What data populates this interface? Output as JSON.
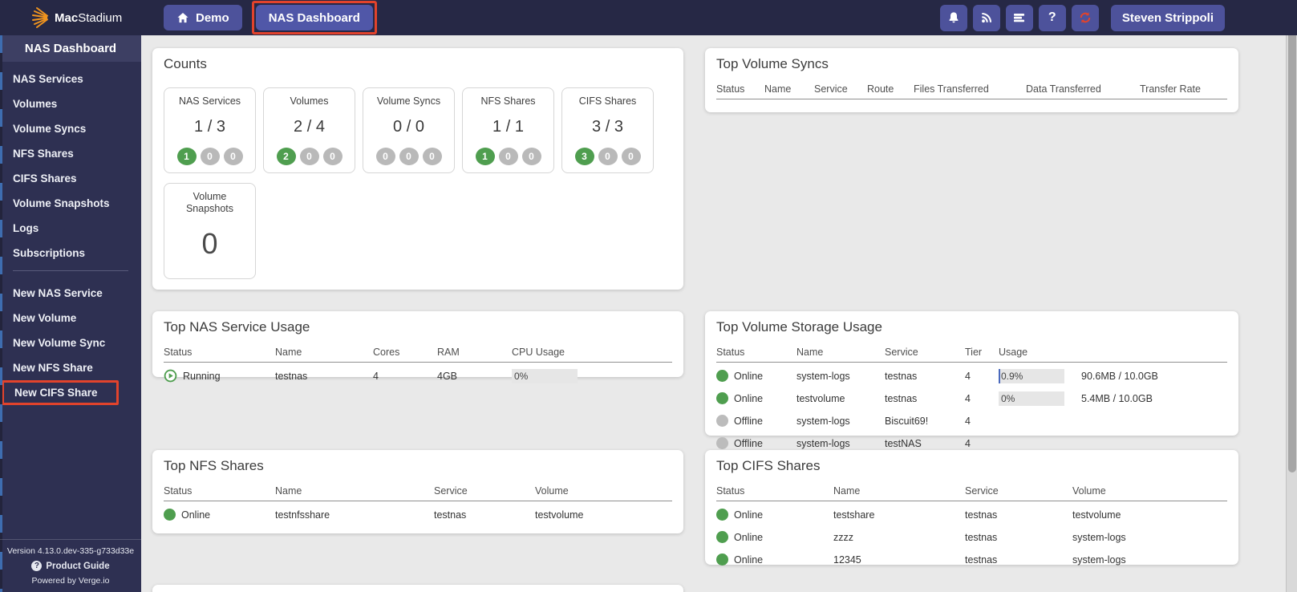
{
  "colors": {
    "accent_red": "#e2432c",
    "green": "#4f9e4f",
    "badge_gray": "#b9b9b9",
    "navbar_bg": "#262845",
    "sidebar_bg": "#2e3052",
    "button_bg": "#4d529b",
    "refresh_orange": "#e2432c",
    "bar_fill_blue": "#4a69bd",
    "logo_orange": "#f0941f"
  },
  "navbar": {
    "logo_bold": "Mac",
    "logo_light": "Stadium",
    "tabs": [
      {
        "label": "Demo",
        "icon": "home-icon"
      },
      {
        "label": "NAS Dashboard",
        "highlighted": true
      }
    ],
    "icon_buttons": [
      "bell-icon",
      "rss-icon",
      "server-list-icon",
      "help-icon",
      "refresh-icon"
    ],
    "help_glyph": "?",
    "user": "Steven Strippoli"
  },
  "sidebar": {
    "title": "NAS Dashboard",
    "items": [
      "NAS Services",
      "Volumes",
      "Volume Syncs",
      "NFS Shares",
      "CIFS Shares",
      "Volume Snapshots",
      "Logs",
      "Subscriptions"
    ],
    "actions": [
      {
        "label": "New NAS Service"
      },
      {
        "label": "New Volume"
      },
      {
        "label": "New Volume Sync"
      },
      {
        "label": "New NFS Share"
      },
      {
        "label": "New CIFS Share",
        "highlighted": true
      }
    ],
    "footer": {
      "version": "Version 4.13.0.dev-335-g733d33e",
      "guide": "Product Guide",
      "powered": "Powered by Verge.io"
    }
  },
  "counts": {
    "title": "Counts",
    "cards": [
      {
        "label": "NAS Services",
        "value": "1 / 3",
        "badges": [
          {
            "n": "1",
            "on": true
          },
          {
            "n": "0",
            "on": false
          },
          {
            "n": "0",
            "on": false
          }
        ]
      },
      {
        "label": "Volumes",
        "value": "2 / 4",
        "badges": [
          {
            "n": "2",
            "on": true
          },
          {
            "n": "0",
            "on": false
          },
          {
            "n": "0",
            "on": false
          }
        ]
      },
      {
        "label": "Volume Syncs",
        "value": "0 / 0",
        "badges": [
          {
            "n": "0",
            "on": false
          },
          {
            "n": "0",
            "on": false
          },
          {
            "n": "0",
            "on": false
          }
        ]
      },
      {
        "label": "NFS Shares",
        "value": "1 / 1",
        "badges": [
          {
            "n": "1",
            "on": true
          },
          {
            "n": "0",
            "on": false
          },
          {
            "n": "0",
            "on": false
          }
        ]
      },
      {
        "label": "CIFS Shares",
        "value": "3 / 3",
        "badges": [
          {
            "n": "3",
            "on": true
          },
          {
            "n": "0",
            "on": false
          },
          {
            "n": "0",
            "on": false
          }
        ]
      }
    ],
    "snapshot_card": {
      "label": "Volume Snapshots",
      "value": "0"
    }
  },
  "panels": {
    "volume_syncs": {
      "title": "Top Volume Syncs",
      "columns": [
        "Status",
        "Name",
        "Service",
        "Route",
        "Files Transferred",
        "Data Transferred",
        "Transfer Rate"
      ],
      "rows": []
    },
    "nas_service_usage": {
      "title": "Top NAS Service Usage",
      "columns": [
        "Status",
        "Name",
        "Cores",
        "RAM",
        "CPU Usage"
      ],
      "rows": [
        [
          {
            "status": "Running"
          },
          "testnas",
          "4",
          "4GB",
          {
            "bar": 0,
            "label": "0%"
          }
        ]
      ]
    },
    "volume_storage": {
      "title": "Top Volume Storage Usage",
      "columns": [
        "Status",
        "Name",
        "Service",
        "Tier",
        "Usage"
      ],
      "rows": [
        [
          {
            "dot": "green",
            "label": "Online"
          },
          "system-logs",
          "testnas",
          "4",
          {
            "bar": 0.9,
            "label": "0.9%",
            "after": "90.6MB / 10.0GB"
          }
        ],
        [
          {
            "dot": "green",
            "label": "Online"
          },
          "testvolume",
          "testnas",
          "4",
          {
            "bar": 0,
            "label": "0%",
            "after": "5.4MB / 10.0GB"
          }
        ],
        [
          {
            "dot": "gray",
            "label": "Offline"
          },
          "system-logs",
          "Biscuit69!",
          "4",
          ""
        ],
        [
          {
            "dot": "gray",
            "label": "Offline"
          },
          "system-logs",
          "testNAS",
          "4",
          ""
        ]
      ]
    },
    "nfs_shares": {
      "title": "Top NFS Shares",
      "columns": [
        "Status",
        "Name",
        "Service",
        "Volume"
      ],
      "rows": [
        [
          {
            "dot": "green",
            "label": "Online"
          },
          "testnfsshare",
          "testnas",
          "testvolume"
        ]
      ]
    },
    "cifs_shares": {
      "title": "Top CIFS Shares",
      "columns": [
        "Status",
        "Name",
        "Service",
        "Volume"
      ],
      "rows": [
        [
          {
            "dot": "green",
            "label": "Online"
          },
          "testshare",
          "testnas",
          "testvolume"
        ],
        [
          {
            "dot": "green",
            "label": "Online"
          },
          "zzzz",
          "testnas",
          "system-logs"
        ],
        [
          {
            "dot": "green",
            "label": "Online"
          },
          "12345",
          "testnas",
          "system-logs"
        ]
      ]
    }
  }
}
